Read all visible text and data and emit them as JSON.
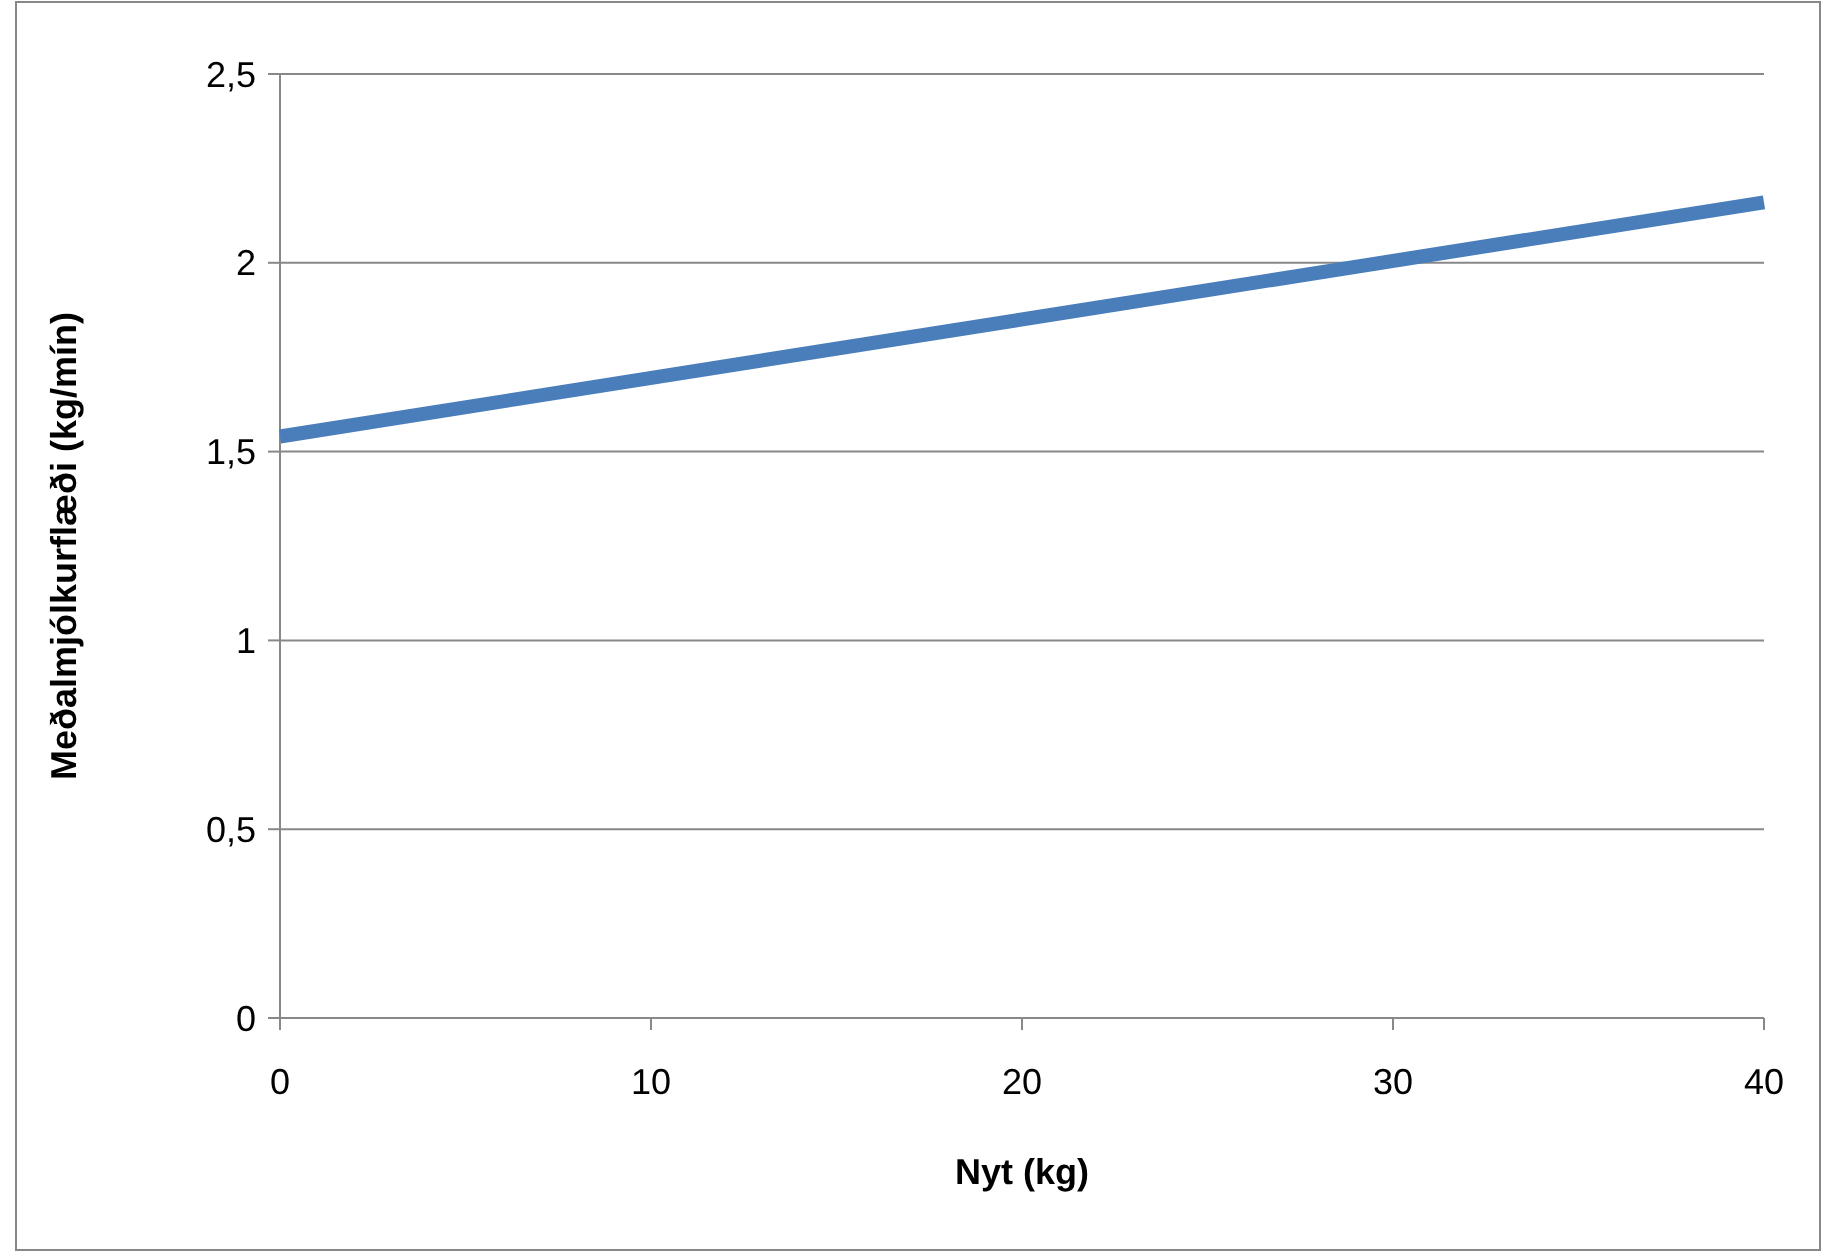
{
  "chart_data": {
    "type": "line",
    "xlabel": "Nyt (kg)",
    "ylabel": "Meðalmjólkurflæði (kg/mín)",
    "x": [
      0,
      40
    ],
    "series": [
      {
        "color": "#4a7ebb",
        "values": [
          1.54,
          2.16
        ]
      }
    ],
    "xlim": [
      0,
      40
    ],
    "xticks": [
      0,
      10,
      20,
      30,
      40
    ],
    "ylim": [
      0,
      2.5
    ],
    "yticks": [
      0,
      {
        "value": 0.5,
        "label": "0,5"
      },
      1,
      {
        "value": 1.5,
        "label": "1,5"
      },
      2,
      {
        "value": 2.5,
        "label": "2,5"
      }
    ],
    "grid": "y",
    "marker": "none",
    "line_style": "solid"
  }
}
